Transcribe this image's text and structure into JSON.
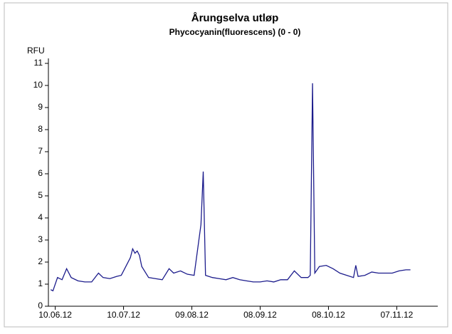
{
  "chart_data": {
    "type": "line",
    "title": "Årungselva utløp",
    "subtitle": "Phycocyanin(fluorescens) (0 - 0)",
    "ylabel": "RFU",
    "x": [
      "2012-06-08",
      "2012-06-09",
      "2012-06-11",
      "2012-06-13",
      "2012-06-15",
      "2012-06-17",
      "2012-06-20",
      "2012-06-23",
      "2012-06-26",
      "2012-06-29",
      "2012-07-01",
      "2012-07-04",
      "2012-07-07",
      "2012-07-09",
      "2012-07-11",
      "2012-07-13",
      "2012-07-14",
      "2012-07-15",
      "2012-07-16",
      "2012-07-17",
      "2012-07-18",
      "2012-07-21",
      "2012-07-24",
      "2012-07-27",
      "2012-07-30",
      "2012-08-01",
      "2012-08-04",
      "2012-08-07",
      "2012-08-10",
      "2012-08-13",
      "2012-08-14",
      "2012-08-15",
      "2012-08-18",
      "2012-08-21",
      "2012-08-24",
      "2012-08-27",
      "2012-08-30",
      "2012-09-02",
      "2012-09-05",
      "2012-09-08",
      "2012-09-11",
      "2012-09-14",
      "2012-09-17",
      "2012-09-20",
      "2012-09-23",
      "2012-09-26",
      "2012-09-29",
      "2012-09-30",
      "2012-10-01",
      "2012-10-02",
      "2012-10-04",
      "2012-10-07",
      "2012-10-10",
      "2012-10-13",
      "2012-10-16",
      "2012-10-19",
      "2012-10-20",
      "2012-10-21",
      "2012-10-24",
      "2012-10-27",
      "2012-10-30",
      "2012-11-02",
      "2012-11-05",
      "2012-11-08",
      "2012-11-11",
      "2012-11-13"
    ],
    "series": [
      {
        "name": "Phycocyanin",
        "color": "#1c1c8c",
        "values": [
          0.75,
          0.7,
          1.3,
          1.2,
          1.7,
          1.3,
          1.15,
          1.1,
          1.1,
          1.5,
          1.3,
          1.25,
          1.35,
          1.4,
          1.8,
          2.2,
          2.6,
          2.4,
          2.5,
          2.3,
          1.8,
          1.3,
          1.25,
          1.2,
          1.7,
          1.5,
          1.6,
          1.45,
          1.4,
          3.7,
          6.1,
          1.4,
          1.3,
          1.25,
          1.2,
          1.3,
          1.2,
          1.15,
          1.1,
          1.1,
          1.15,
          1.1,
          1.2,
          1.2,
          1.6,
          1.3,
          1.3,
          1.4,
          10.1,
          1.5,
          1.8,
          1.85,
          1.7,
          1.5,
          1.4,
          1.3,
          1.85,
          1.35,
          1.4,
          1.55,
          1.5,
          1.5,
          1.5,
          1.6,
          1.65,
          1.65
        ]
      }
    ],
    "xlim": [
      "2012-06-07",
      "2012-11-25"
    ],
    "xticks": [
      {
        "value": "2012-06-10",
        "label": "10.06.12"
      },
      {
        "value": "2012-07-10",
        "label": "10.07.12"
      },
      {
        "value": "2012-08-09",
        "label": "09.08.12"
      },
      {
        "value": "2012-09-08",
        "label": "08.09.12"
      },
      {
        "value": "2012-10-08",
        "label": "08.10.12"
      },
      {
        "value": "2012-11-07",
        "label": "07.11.12"
      }
    ],
    "ylim": [
      0,
      11
    ],
    "yticks": [
      0,
      1,
      2,
      3,
      4,
      5,
      6,
      7,
      8,
      9,
      10,
      11
    ]
  }
}
